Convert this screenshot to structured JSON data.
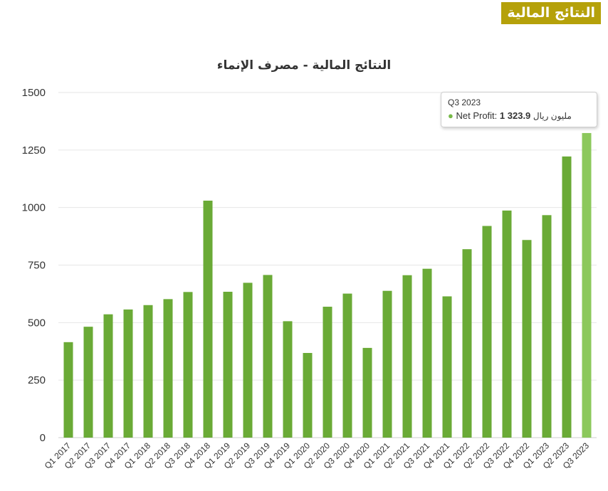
{
  "badge": {
    "label": "النتائج المالية"
  },
  "tooltip": {
    "header": "Q3 2023",
    "series_label": "Net Profit:",
    "value": "1 323.9",
    "unit": "مليون ريال"
  },
  "colors": {
    "bar": "#6aaa36",
    "bar_highlight": "#8cc85c",
    "grid": "#e6e6e6",
    "axis": "#333333",
    "badge": "#b5a10a"
  },
  "chart_data": {
    "type": "bar",
    "title": "النتائج المالية - مصرف الإنماء",
    "xlabel": "",
    "ylabel": "",
    "ylim": [
      0,
      1500
    ],
    "yticks": [
      0,
      250,
      500,
      750,
      1000,
      1250,
      1500
    ],
    "grid": true,
    "highlighted": "Q3 2023",
    "categories": [
      "Q1 2017",
      "Q2 2017",
      "Q3 2017",
      "Q4 2017",
      "Q1 2018",
      "Q2 2018",
      "Q3 2018",
      "Q4 2018",
      "Q1 2019",
      "Q2 2019",
      "Q3 2019",
      "Q4 2019",
      "Q1 2020",
      "Q2 2020",
      "Q3 2020",
      "Q4 2020",
      "Q1 2021",
      "Q2 2021",
      "Q3 2021",
      "Q4 2021",
      "Q1 2022",
      "Q2 2022",
      "Q3 2022",
      "Q4 2022",
      "Q1 2023",
      "Q2 2023",
      "Q3 2023"
    ],
    "series": [
      {
        "name": "Net Profit",
        "values": [
          415,
          482,
          536,
          557,
          576,
          602,
          633,
          1030,
          634,
          673,
          707,
          506,
          368,
          569,
          626,
          390,
          638,
          706,
          734,
          614,
          819,
          920,
          987,
          859,
          967,
          1222,
          1323.9
        ]
      }
    ]
  }
}
